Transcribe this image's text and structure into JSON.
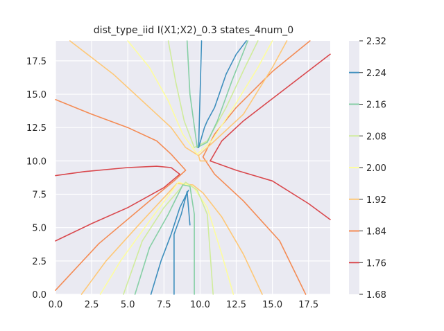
{
  "chart_data": {
    "type": "contour",
    "title": "dist_type_iid I(X1;X2)_0.3 states_4num_0",
    "xlabel": "",
    "ylabel": "",
    "xlim": [
      0,
      19
    ],
    "ylim": [
      0,
      19
    ],
    "grid": true,
    "x_ticks": [
      0.0,
      2.5,
      5.0,
      7.5,
      10.0,
      12.5,
      15.0,
      17.5
    ],
    "y_ticks": [
      0.0,
      2.5,
      5.0,
      7.5,
      10.0,
      12.5,
      15.0,
      17.5
    ],
    "x_tick_labels": [
      "0.0",
      "2.5",
      "5.0",
      "7.5",
      "10.0",
      "12.5",
      "15.0",
      "17.5"
    ],
    "y_tick_labels": [
      "0.0",
      "2.5",
      "5.0",
      "7.5",
      "10.0",
      "12.5",
      "15.0",
      "17.5"
    ],
    "colorbar": {
      "min": 1.68,
      "max": 2.32,
      "ticks": [
        1.68,
        1.76,
        1.84,
        1.92,
        2.0,
        2.08,
        2.16,
        2.24,
        2.32
      ],
      "tick_labels": [
        "1.68",
        "1.76",
        "1.84",
        "1.92",
        "2.00",
        "2.08",
        "2.16",
        "2.24",
        "2.32"
      ]
    },
    "levels": [
      {
        "value": 1.76,
        "color": "#d9474c",
        "paths": [
          [
            [
              19,
              18
            ],
            [
              16,
              15.5
            ],
            [
              13,
              13
            ],
            [
              11.5,
              11.5
            ],
            [
              10.7,
              10
            ]
          ],
          [
            [
              10.7,
              10
            ],
            [
              12.5,
              9.3
            ],
            [
              15,
              8.5
            ],
            [
              17.5,
              6.8
            ],
            [
              19,
              5.6
            ]
          ],
          [
            [
              0,
              8.9
            ],
            [
              2,
              9.2
            ],
            [
              5,
              9.5
            ],
            [
              7,
              9.6
            ],
            [
              8,
              9.5
            ],
            [
              8.6,
              9
            ]
          ],
          [
            [
              8.6,
              9
            ],
            [
              7.5,
              8
            ],
            [
              5,
              6.5
            ],
            [
              2.5,
              5.3
            ],
            [
              0,
              4
            ]
          ]
        ]
      },
      {
        "value": 1.84,
        "color": "#f48b54",
        "paths": [
          [
            [
              17.6,
              19
            ],
            [
              15,
              16.7
            ],
            [
              12.5,
              14
            ],
            [
              11,
              12
            ],
            [
              10.2,
              10.3
            ]
          ],
          [
            [
              10.2,
              10.3
            ],
            [
              11,
              9
            ],
            [
              13,
              7
            ],
            [
              15.5,
              4
            ],
            [
              17.3,
              0
            ]
          ],
          [
            [
              0,
              14.6
            ],
            [
              2.5,
              13.5
            ],
            [
              5,
              12.5
            ],
            [
              7,
              11.5
            ],
            [
              8,
              10.5
            ],
            [
              9,
              9.3
            ],
            [
              8.2,
              8.5
            ]
          ],
          [
            [
              8.2,
              8.5
            ],
            [
              6.5,
              7
            ],
            [
              3,
              3.8
            ],
            [
              0,
              0.3
            ]
          ]
        ]
      },
      {
        "value": 1.92,
        "color": "#fec877",
        "paths": [
          [
            [
              1,
              19
            ],
            [
              4,
              16.5
            ],
            [
              6.5,
              14
            ],
            [
              8,
              12.5
            ],
            [
              9,
              11
            ],
            [
              9.9,
              10.4
            ]
          ],
          [
            [
              9.9,
              10.4
            ],
            [
              11,
              11.5
            ],
            [
              13,
              13.5
            ],
            [
              15,
              17
            ],
            [
              16,
              19
            ]
          ],
          [
            [
              9.9,
              10.4
            ],
            [
              10,
              10
            ],
            [
              10.5,
              10
            ]
          ],
          [
            [
              14.3,
              0
            ],
            [
              13,
              3
            ],
            [
              11.5,
              5.8
            ],
            [
              10.2,
              7.6
            ],
            [
              9.5,
              8.2
            ],
            [
              8.4,
              8.3
            ]
          ],
          [
            [
              8.4,
              8.3
            ],
            [
              6,
              5.5
            ],
            [
              3.5,
              2.5
            ],
            [
              1.8,
              0
            ]
          ]
        ]
      },
      {
        "value": 2.0,
        "color": "#fdfd9f",
        "paths": [
          [
            [
              5,
              19
            ],
            [
              6.5,
              17
            ],
            [
              7.8,
              14.5
            ],
            [
              8.8,
              12
            ],
            [
              9.8,
              10.5
            ]
          ],
          [
            [
              9.8,
              10.5
            ],
            [
              10.8,
              11.5
            ],
            [
              12.3,
              14
            ],
            [
              14,
              17
            ],
            [
              15,
              19
            ]
          ],
          [
            [
              12.3,
              0
            ],
            [
              11.5,
              3
            ],
            [
              10.5,
              6.5
            ],
            [
              9.5,
              8.1
            ],
            [
              8.5,
              8.4
            ]
          ],
          [
            [
              8.5,
              8.4
            ],
            [
              6.5,
              5.5
            ],
            [
              4.5,
              2.5
            ],
            [
              3.1,
              0
            ]
          ]
        ]
      },
      {
        "value": 2.08,
        "color": "#d0ec9c",
        "paths": [
          [
            [
              7.8,
              19
            ],
            [
              8.3,
              16
            ],
            [
              8.9,
              13
            ],
            [
              9.6,
              11
            ]
          ],
          [
            [
              9.6,
              11
            ],
            [
              10.5,
              11.5
            ],
            [
              11.8,
              14
            ],
            [
              13.1,
              17
            ],
            [
              14,
              19
            ]
          ],
          [
            [
              10.9,
              0
            ],
            [
              10.7,
              3
            ],
            [
              10.5,
              6
            ],
            [
              9.8,
              7.8
            ],
            [
              9,
              8.4
            ]
          ],
          [
            [
              9,
              8.4
            ],
            [
              7.5,
              6.5
            ],
            [
              6,
              4
            ],
            [
              4.7,
              0
            ]
          ]
        ]
      },
      {
        "value": 2.16,
        "color": "#86cfa5",
        "paths": [
          [
            [
              9.1,
              19
            ],
            [
              9.3,
              15
            ],
            [
              9.8,
              11
            ]
          ],
          [
            [
              9.8,
              11
            ],
            [
              10.5,
              11.4
            ],
            [
              11.2,
              13
            ],
            [
              12.2,
              16
            ],
            [
              13.3,
              19
            ]
          ],
          [
            [
              9.6,
              0
            ],
            [
              9.6,
              3
            ],
            [
              9.6,
              6
            ],
            [
              9.3,
              8.1
            ],
            [
              8.8,
              8.2
            ]
          ],
          [
            [
              8.8,
              8.2
            ],
            [
              7.8,
              6
            ],
            [
              6.5,
              3.5
            ],
            [
              5.5,
              0
            ]
          ]
        ]
      },
      {
        "value": 2.24,
        "color": "#3d8ebd",
        "paths": [
          [
            [
              10.1,
              19
            ],
            [
              10,
              15
            ],
            [
              9.9,
              11
            ]
          ],
          [
            [
              9.9,
              11
            ],
            [
              10.3,
              12.5
            ],
            [
              10.5,
              13
            ],
            [
              11,
              14
            ],
            [
              11.8,
              16.5
            ],
            [
              12.5,
              18
            ],
            [
              13.2,
              19
            ]
          ],
          [
            [
              8.2,
              0
            ],
            [
              8.2,
              2.5
            ],
            [
              8.2,
              4.5
            ],
            [
              8.7,
              6
            ],
            [
              9.1,
              7.7
            ],
            [
              9.3,
              5.2
            ]
          ],
          [
            [
              9.2,
              7.8
            ],
            [
              8.6,
              6.5
            ],
            [
              8,
              4.5
            ],
            [
              7.3,
              2.5
            ],
            [
              6.6,
              0
            ]
          ]
        ]
      }
    ]
  }
}
